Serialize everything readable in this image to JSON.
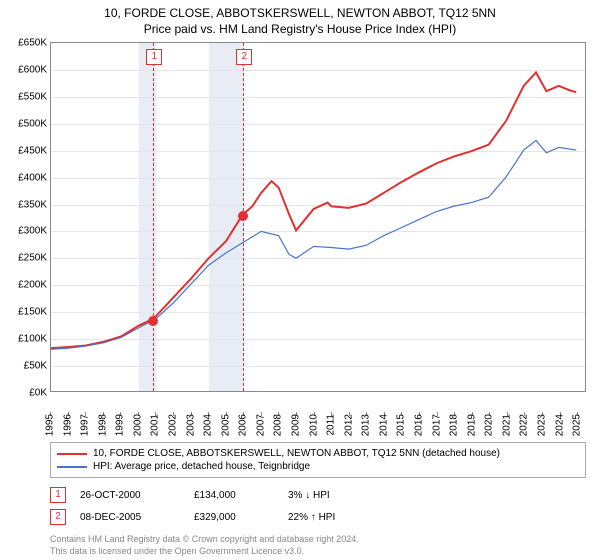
{
  "title_line1": "10, FORDE CLOSE, ABBOTSKERSWELL, NEWTON ABBOT, TQ12 5NN",
  "title_line2": "Price paid vs. HM Land Registry's House Price Index (HPI)",
  "chart": {
    "type": "line",
    "background_color": "#ffffff",
    "grid_color": "#e6e6e6",
    "border_color": "#888888",
    "x_years": [
      1995,
      1996,
      1997,
      1998,
      1999,
      2000,
      2001,
      2002,
      2003,
      2004,
      2005,
      2006,
      2007,
      2008,
      2009,
      2010,
      2011,
      2012,
      2013,
      2014,
      2015,
      2016,
      2017,
      2018,
      2019,
      2020,
      2021,
      2022,
      2023,
      2024,
      2025
    ],
    "xlim": [
      1995,
      2025.5
    ],
    "ylim": [
      0,
      650
    ],
    "ytick_step": 50,
    "y_prefix": "£",
    "y_suffix": "K",
    "shaded_xranges": [
      [
        2000,
        2001
      ],
      [
        2004,
        2006
      ]
    ],
    "shade_color": "#e8edf5",
    "vlines": [
      {
        "x": 2000.82,
        "label": "1"
      },
      {
        "x": 2005.94,
        "label": "2"
      }
    ],
    "vline_color": "#e03030",
    "series": [
      {
        "id": "property",
        "label": "10, FORDE CLOSE, ABBOTSKERSWELL, NEWTON ABBOT, TQ12 5NN (detached house)",
        "color": "#e03030",
        "width": 2,
        "points": [
          [
            1995,
            80
          ],
          [
            1996,
            82
          ],
          [
            1997,
            85
          ],
          [
            1998,
            92
          ],
          [
            1999,
            102
          ],
          [
            2000,
            122
          ],
          [
            2000.82,
            134
          ],
          [
            2001,
            140
          ],
          [
            2002,
            175
          ],
          [
            2003,
            210
          ],
          [
            2004,
            248
          ],
          [
            2005,
            280
          ],
          [
            2005.94,
            329
          ],
          [
            2006.5,
            345
          ],
          [
            2007,
            370
          ],
          [
            2007.6,
            392
          ],
          [
            2008,
            380
          ],
          [
            2008.6,
            330
          ],
          [
            2009,
            300
          ],
          [
            2009.5,
            320
          ],
          [
            2010,
            340
          ],
          [
            2010.8,
            352
          ],
          [
            2011,
            345
          ],
          [
            2012,
            342
          ],
          [
            2013,
            350
          ],
          [
            2014,
            370
          ],
          [
            2015,
            390
          ],
          [
            2016,
            408
          ],
          [
            2017,
            425
          ],
          [
            2018,
            438
          ],
          [
            2019,
            448
          ],
          [
            2020,
            460
          ],
          [
            2021,
            505
          ],
          [
            2022,
            570
          ],
          [
            2022.7,
            595
          ],
          [
            2023.3,
            560
          ],
          [
            2024,
            570
          ],
          [
            2024.6,
            562
          ],
          [
            2025,
            558
          ]
        ],
        "event_markers": [
          {
            "x": 2000.82,
            "y": 134
          },
          {
            "x": 2005.94,
            "y": 329
          }
        ]
      },
      {
        "id": "hpi",
        "label": "HPI: Average price, detached house, Teignbridge",
        "color": "#4a74c9",
        "width": 1.2,
        "points": [
          [
            1995,
            78
          ],
          [
            1996,
            80
          ],
          [
            1997,
            84
          ],
          [
            1998,
            90
          ],
          [
            1999,
            100
          ],
          [
            2000,
            118
          ],
          [
            2001,
            135
          ],
          [
            2002,
            165
          ],
          [
            2003,
            200
          ],
          [
            2004,
            235
          ],
          [
            2005,
            258
          ],
          [
            2006,
            278
          ],
          [
            2007,
            298
          ],
          [
            2008,
            290
          ],
          [
            2008.6,
            255
          ],
          [
            2009,
            248
          ],
          [
            2010,
            270
          ],
          [
            2011,
            268
          ],
          [
            2012,
            265
          ],
          [
            2013,
            272
          ],
          [
            2014,
            290
          ],
          [
            2015,
            305
          ],
          [
            2016,
            320
          ],
          [
            2017,
            335
          ],
          [
            2018,
            345
          ],
          [
            2019,
            352
          ],
          [
            2020,
            362
          ],
          [
            2021,
            400
          ],
          [
            2022,
            450
          ],
          [
            2022.7,
            468
          ],
          [
            2023.3,
            445
          ],
          [
            2024,
            455
          ],
          [
            2025,
            450
          ]
        ]
      }
    ]
  },
  "legend": [
    {
      "color": "#e03030",
      "label": "10, FORDE CLOSE, ABBOTSKERSWELL, NEWTON ABBOT, TQ12 5NN (detached house)"
    },
    {
      "color": "#4a74c9",
      "label": "HPI: Average price, detached house, Teignbridge"
    }
  ],
  "events": [
    {
      "num": "1",
      "date": "26-OCT-2000",
      "price": "£134,000",
      "diff": "3% ↓ HPI"
    },
    {
      "num": "2",
      "date": "08-DEC-2005",
      "price": "£329,000",
      "diff": "22% ↑ HPI"
    }
  ],
  "footer_line1": "Contains HM Land Registry data © Crown copyright and database right 2024.",
  "footer_line2": "This data is licensed under the Open Government Licence v3.0."
}
